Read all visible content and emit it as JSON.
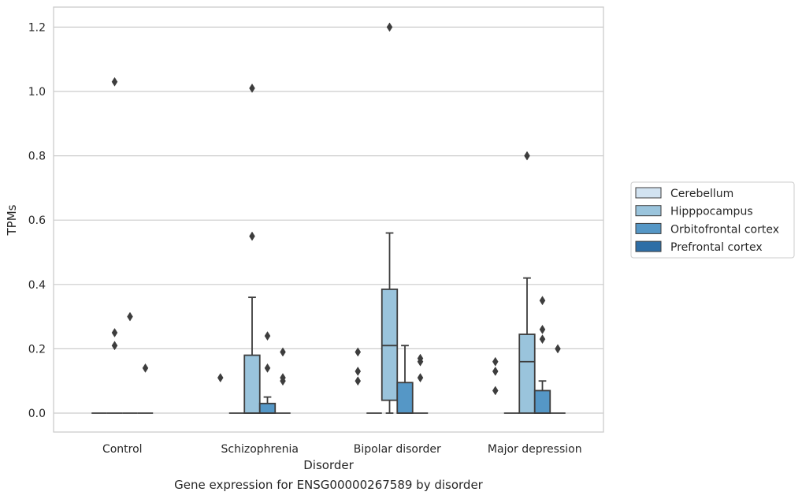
{
  "caption": "Gene expression for ENSG00000267589 by disorder",
  "chart_data": {
    "type": "box",
    "xlabel": "Disorder",
    "ylabel": "TPMs",
    "categories": [
      "Control",
      "Schizophrenia",
      "Bipolar disorder",
      "Major depression"
    ],
    "ylim": [
      -0.06,
      1.265
    ],
    "yticks": [
      "0.0",
      "0.2",
      "0.4",
      "0.6",
      "0.8",
      "1.0",
      "1.2"
    ],
    "grid": true,
    "legend_position": "right-center",
    "series": [
      {
        "name": "Cerebellum",
        "color": "#d2e3f1",
        "boxes": [
          {
            "category": "Control",
            "q1": 0,
            "median": 0,
            "q3": 0,
            "whislo": 0,
            "whishi": 0,
            "fliers": []
          },
          {
            "category": "Schizophrenia",
            "q1": 0,
            "median": 0,
            "q3": 0,
            "whislo": 0,
            "whishi": 0,
            "fliers": []
          },
          {
            "category": "Bipolar disorder",
            "q1": 0,
            "median": 0,
            "q3": 0,
            "whislo": 0,
            "whishi": 0,
            "fliers": []
          },
          {
            "category": "Major depression",
            "q1": 0,
            "median": 0,
            "q3": 0,
            "whislo": 0,
            "whishi": 0,
            "fliers": []
          }
        ]
      },
      {
        "name": "Hipppocampus",
        "color": "#9ac4dc",
        "boxes": [
          {
            "category": "Control",
            "q1": 0,
            "median": 0,
            "q3": 0,
            "whislo": 0,
            "whishi": 0,
            "fliers": [
              1.03,
              0.25,
              0.21
            ]
          },
          {
            "category": "Schizophrenia",
            "q1": 0,
            "median": 0,
            "q3": 0.18,
            "whislo": 0,
            "whishi": 0.36,
            "fliers": [
              1.01,
              0.55
            ]
          },
          {
            "category": "Bipolar disorder",
            "q1": 0.04,
            "median": 0.21,
            "q3": 0.385,
            "whislo": 0,
            "whishi": 0.56,
            "fliers": [
              1.2
            ]
          },
          {
            "category": "Major depression",
            "q1": 0,
            "median": 0.16,
            "q3": 0.245,
            "whislo": 0,
            "whishi": 0.42,
            "fliers": [
              0.8
            ]
          }
        ]
      },
      {
        "name": "Orbitofrontal cortex",
        "color": "#5597c6",
        "boxes": [
          {
            "category": "Control",
            "q1": 0,
            "median": 0,
            "q3": 0,
            "whislo": 0,
            "whishi": 0,
            "fliers": [
              0.3
            ]
          },
          {
            "category": "Schizophrenia",
            "q1": 0,
            "median": 0,
            "q3": 0.03,
            "whislo": 0,
            "whishi": 0.05,
            "fliers": [
              0.24,
              0.14
            ]
          },
          {
            "category": "Bipolar disorder",
            "q1": 0,
            "median": 0,
            "q3": 0.095,
            "whislo": 0,
            "whishi": 0.21,
            "fliers": []
          },
          {
            "category": "Major depression",
            "q1": 0,
            "median": 0,
            "q3": 0.07,
            "whislo": 0,
            "whishi": 0.1,
            "fliers": [
              0.35,
              0.26,
              0.23
            ]
          }
        ]
      },
      {
        "name": "Prefrontal cortex",
        "color": "#2e6ea6",
        "boxes": [
          {
            "category": "Control",
            "q1": 0,
            "median": 0,
            "q3": 0,
            "whislo": 0,
            "whishi": 0,
            "fliers": [
              0.14
            ]
          },
          {
            "category": "Schizophrenia",
            "q1": 0,
            "median": 0,
            "q3": 0,
            "whislo": 0,
            "whishi": 0,
            "fliers": [
              0.19,
              0.11,
              0.1
            ]
          },
          {
            "category": "Bipolar disorder",
            "q1": 0,
            "median": 0,
            "q3": 0,
            "whislo": 0,
            "whishi": 0,
            "fliers": [
              0.17,
              0.16,
              0.11
            ]
          },
          {
            "category": "Major depression",
            "q1": 0,
            "median": 0,
            "q3": 0,
            "whislo": 0,
            "whishi": 0,
            "fliers": [
              0.2
            ]
          }
        ]
      }
    ],
    "left_fliers": [
      {
        "category": "Schizophrenia",
        "values": [
          0.11
        ]
      },
      {
        "category": "Bipolar disorder",
        "values": [
          0.19,
          0.13,
          0.1
        ]
      },
      {
        "category": "Major depression",
        "values": [
          0.16,
          0.13,
          0.07
        ]
      }
    ]
  }
}
